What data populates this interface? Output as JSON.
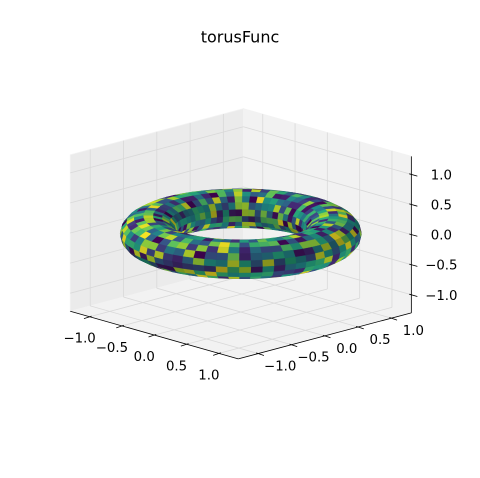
{
  "chart_data": {
    "type": "surface",
    "title": "torusFunc",
    "xlabel": "",
    "ylabel": "",
    "zlabel": "",
    "grid": true,
    "projection": "3d",
    "surface": {
      "shape": "torus",
      "major_radius": 1.0,
      "minor_radius": 0.3,
      "coloring": "random cell colors",
      "colormap": "viridis",
      "grid_u": 64,
      "grid_v": 18
    },
    "x_axis": {
      "lim": [
        -1.3,
        1.3
      ],
      "ticks": [
        -1.0,
        -0.5,
        0.0,
        0.5,
        1.0
      ],
      "tick_labels": [
        "−1.0",
        "−0.5",
        "0.0",
        "0.5",
        "1.0"
      ]
    },
    "y_axis": {
      "lim": [
        -1.3,
        1.3
      ],
      "ticks": [
        -1.0,
        -0.5,
        0.0,
        0.5,
        1.0
      ],
      "tick_labels": [
        "−1.0",
        "−0.5",
        "0.0",
        "0.5",
        "1.0"
      ]
    },
    "z_axis": {
      "lim": [
        -1.3,
        1.3
      ],
      "ticks": [
        -1.0,
        -0.5,
        0.0,
        0.5,
        1.0
      ],
      "tick_labels": [
        "−1.0",
        "−0.5",
        "0.0",
        "0.5",
        "1.0"
      ]
    },
    "colors": {
      "pane": "#f2f2f2",
      "pane_side": "#ebebeb",
      "grid": "#d9d9d9",
      "axis_line": "#000000",
      "viridis": [
        "#440154",
        "#472d7b",
        "#3b528b",
        "#2c728e",
        "#21918c",
        "#28ae80",
        "#5ec962",
        "#addc30",
        "#fde725"
      ]
    }
  }
}
